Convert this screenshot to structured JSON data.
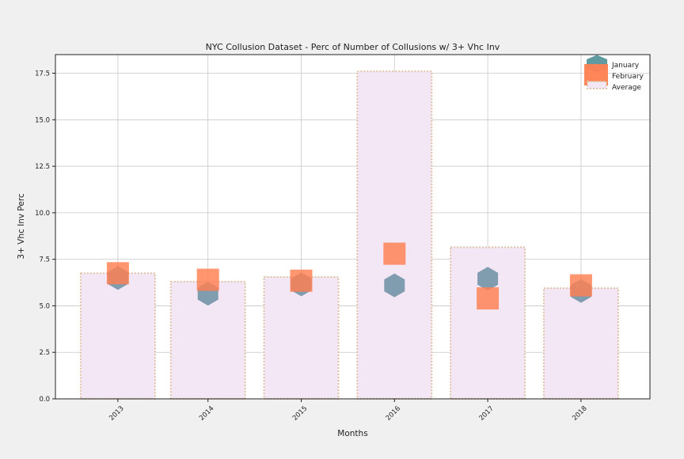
{
  "chart_data": {
    "type": "bar",
    "title": "NYC Collusion Dataset - Perc of Number of Collusions w/ 3+ Vhc Inv",
    "xlabel": "Months",
    "ylabel": "3+ Vhc Inv Perc",
    "ylim": [
      0,
      18.5
    ],
    "yticks": [
      "0.0",
      "2.5",
      "5.0",
      "7.5",
      "10.0",
      "12.5",
      "15.0",
      "17.5"
    ],
    "categories": [
      "2013",
      "2014",
      "2015",
      "2016",
      "2017",
      "2018"
    ],
    "grid": true,
    "legend_position": "top-right",
    "series": [
      {
        "name": "Average",
        "kind": "bar",
        "values": [
          6.75,
          6.3,
          6.55,
          17.6,
          8.15,
          5.95
        ],
        "fill": "#f3e6f5",
        "edge": "#dfc3a8"
      },
      {
        "name": "January",
        "kind": "marker",
        "marker": "hexagon",
        "values": [
          6.5,
          5.65,
          6.15,
          6.1,
          6.45,
          5.8
        ],
        "color": "#7393a7"
      },
      {
        "name": "February",
        "kind": "marker",
        "marker": "square",
        "values": [
          6.75,
          6.4,
          6.35,
          7.8,
          5.4,
          6.1
        ],
        "color": "#ff7f50"
      }
    ],
    "legend": [
      "January",
      "February",
      "Average"
    ],
    "legend_colors": {
      "January": "#5f9aa0",
      "February": "#ff7f50"
    }
  }
}
